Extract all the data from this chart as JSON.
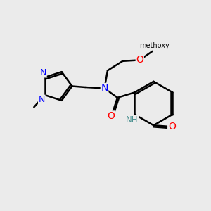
{
  "bg_color": "#ebebeb",
  "bond_color": "#000000",
  "bond_width": 1.8,
  "atom_colors": {
    "N": "#0000ff",
    "O": "#ff0000",
    "NH": "#4a9090",
    "C": "#000000"
  },
  "font_size": 9,
  "figsize": [
    3.0,
    3.0
  ],
  "dpi": 100,
  "xlim": [
    0,
    10
  ],
  "ylim": [
    0,
    10
  ]
}
